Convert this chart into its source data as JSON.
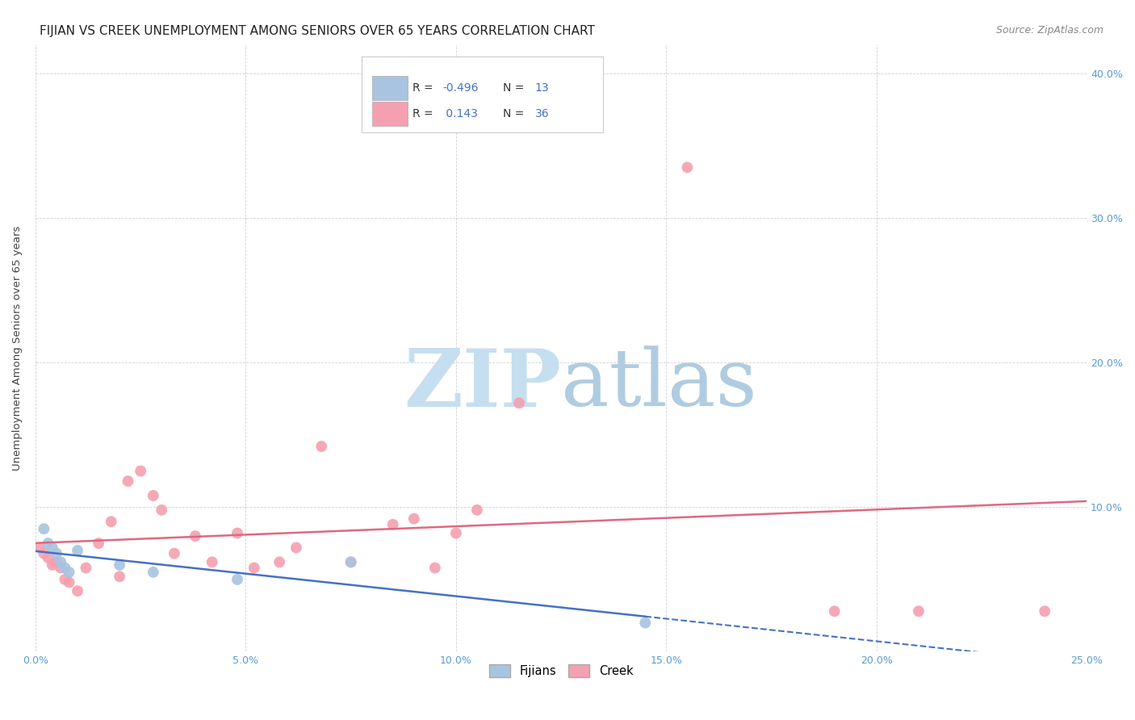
{
  "title": "FIJIAN VS CREEK UNEMPLOYMENT AMONG SENIORS OVER 65 YEARS CORRELATION CHART",
  "source": "Source: ZipAtlas.com",
  "ylabel_left": "Unemployment Among Seniors over 65 years",
  "xlim": [
    0.0,
    0.25
  ],
  "ylim": [
    0.0,
    0.42
  ],
  "xticks": [
    0.0,
    0.05,
    0.1,
    0.15,
    0.2,
    0.25
  ],
  "xtick_labels": [
    "0.0%",
    "5.0%",
    "10.0%",
    "15.0%",
    "20.0%",
    "25.0%"
  ],
  "yticks_right": [
    0.1,
    0.2,
    0.3,
    0.4
  ],
  "ytick_labels_right": [
    "10.0%",
    "20.0%",
    "30.0%",
    "40.0%"
  ],
  "fijian_color": "#a8c4e0",
  "creek_color": "#f4a0b0",
  "fijian_line_color": "#4472c4",
  "creek_line_color": "#e06880",
  "fijian_R": -0.496,
  "fijian_N": 13,
  "creek_R": 0.143,
  "creek_N": 36,
  "fijian_x": [
    0.002,
    0.003,
    0.004,
    0.005,
    0.006,
    0.007,
    0.008,
    0.01,
    0.02,
    0.028,
    0.048,
    0.075,
    0.145
  ],
  "fijian_y": [
    0.085,
    0.075,
    0.072,
    0.068,
    0.062,
    0.058,
    0.055,
    0.07,
    0.06,
    0.055,
    0.05,
    0.062,
    0.02
  ],
  "creek_x": [
    0.001,
    0.002,
    0.003,
    0.004,
    0.005,
    0.006,
    0.007,
    0.008,
    0.01,
    0.012,
    0.015,
    0.018,
    0.02,
    0.022,
    0.025,
    0.028,
    0.03,
    0.033,
    0.038,
    0.042,
    0.048,
    0.052,
    0.058,
    0.062,
    0.068,
    0.075,
    0.085,
    0.09,
    0.095,
    0.1,
    0.105,
    0.115,
    0.155,
    0.19,
    0.21,
    0.24
  ],
  "creek_y": [
    0.072,
    0.068,
    0.065,
    0.06,
    0.062,
    0.058,
    0.05,
    0.048,
    0.042,
    0.058,
    0.075,
    0.09,
    0.052,
    0.118,
    0.125,
    0.108,
    0.098,
    0.068,
    0.08,
    0.062,
    0.082,
    0.058,
    0.062,
    0.072,
    0.142,
    0.062,
    0.088,
    0.092,
    0.058,
    0.082,
    0.098,
    0.172,
    0.335,
    0.028,
    0.028,
    0.028
  ],
  "background_color": "#ffffff",
  "title_fontsize": 11,
  "axis_label_fontsize": 9.5,
  "tick_fontsize": 9,
  "source_fontsize": 9,
  "right_tick_color": "#5b9bd5",
  "bottom_tick_color": "#5b9bd5"
}
